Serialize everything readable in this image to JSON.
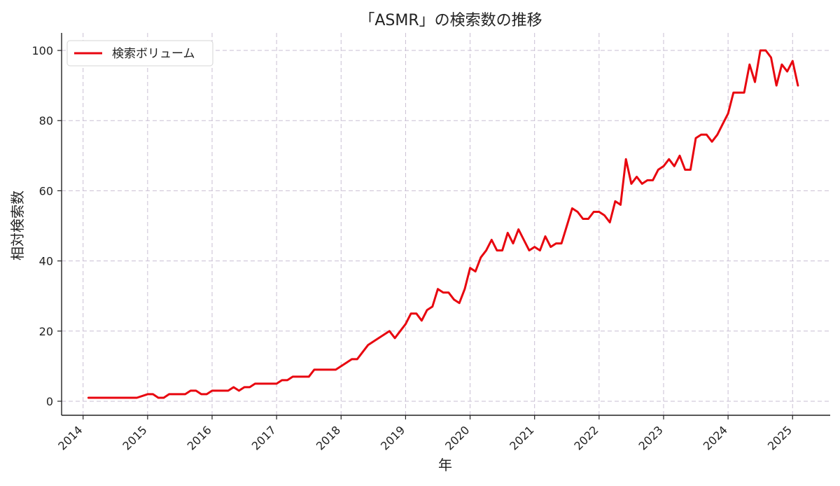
{
  "chart_data": {
    "type": "line",
    "title": "「ASMR」の検索数の推移",
    "xlabel": "年",
    "ylabel": "相対検索数",
    "x_ticks": [
      "2014",
      "2015",
      "2016",
      "2017",
      "2018",
      "2019",
      "2020",
      "2021",
      "2022",
      "2023",
      "2024",
      "2025"
    ],
    "y_ticks": [
      0,
      20,
      40,
      60,
      80,
      100
    ],
    "xlim": [
      "2013-09",
      "2025-08"
    ],
    "ylim": [
      -4,
      105
    ],
    "grid": true,
    "legend_position": "top-left",
    "series": [
      {
        "name": "検索ボリューム",
        "color": "#e8060f",
        "x": [
          "2014-02",
          "2014-11",
          "2015-01",
          "2015-02",
          "2015-03",
          "2015-04",
          "2015-05",
          "2015-06",
          "2015-07",
          "2015-08",
          "2015-09",
          "2015-10",
          "2015-11",
          "2015-12",
          "2016-01",
          "2016-02",
          "2016-03",
          "2016-04",
          "2016-05",
          "2016-06",
          "2016-07",
          "2016-08",
          "2016-09",
          "2016-10",
          "2016-11",
          "2016-12",
          "2017-01",
          "2017-02",
          "2017-03",
          "2017-04",
          "2017-05",
          "2017-06",
          "2017-07",
          "2017-08",
          "2017-09",
          "2017-10",
          "2017-11",
          "2017-12",
          "2018-01",
          "2018-02",
          "2018-03",
          "2018-04",
          "2018-05",
          "2018-06",
          "2018-07",
          "2018-08",
          "2018-09",
          "2018-10",
          "2018-11",
          "2018-12",
          "2019-01",
          "2019-02",
          "2019-03",
          "2019-04",
          "2019-05",
          "2019-06",
          "2019-07",
          "2019-08",
          "2019-09",
          "2019-10",
          "2019-11",
          "2019-12",
          "2020-01",
          "2020-02",
          "2020-03",
          "2020-04",
          "2020-05",
          "2020-06",
          "2020-07",
          "2020-08",
          "2020-09",
          "2020-10",
          "2020-11",
          "2020-12",
          "2021-01",
          "2021-02",
          "2021-03",
          "2021-04",
          "2021-05",
          "2021-06",
          "2021-07",
          "2021-08",
          "2021-09",
          "2021-10",
          "2021-11",
          "2021-12",
          "2022-01",
          "2022-02",
          "2022-03",
          "2022-04",
          "2022-05",
          "2022-06",
          "2022-07",
          "2022-08",
          "2022-09",
          "2022-10",
          "2022-11",
          "2022-12",
          "2023-01",
          "2023-02",
          "2023-03",
          "2023-04",
          "2023-05",
          "2023-06",
          "2023-07",
          "2023-08",
          "2023-09",
          "2023-10",
          "2023-11",
          "2023-12",
          "2024-01",
          "2024-02",
          "2024-03",
          "2024-04",
          "2024-05",
          "2024-06",
          "2024-07",
          "2024-08",
          "2024-09",
          "2024-10",
          "2024-11",
          "2024-12",
          "2025-01",
          "2025-02"
        ],
        "values": [
          1,
          1,
          2,
          2,
          1,
          1,
          2,
          2,
          2,
          2,
          3,
          3,
          2,
          2,
          3,
          3,
          3,
          3,
          4,
          3,
          4,
          4,
          5,
          5,
          5,
          5,
          5,
          6,
          6,
          7,
          7,
          7,
          7,
          9,
          9,
          9,
          9,
          9,
          10,
          11,
          12,
          12,
          14,
          16,
          17,
          18,
          19,
          20,
          18,
          20,
          22,
          25,
          25,
          23,
          26,
          27,
          32,
          31,
          31,
          29,
          28,
          32,
          38,
          37,
          41,
          43,
          46,
          43,
          43,
          48,
          45,
          49,
          46,
          43,
          44,
          43,
          47,
          44,
          45,
          45,
          50,
          55,
          54,
          52,
          52,
          54,
          54,
          53,
          51,
          57,
          56,
          69,
          62,
          64,
          62,
          63,
          63,
          66,
          67,
          69,
          67,
          70,
          66,
          66,
          75,
          76,
          76,
          74,
          76,
          79,
          82,
          88,
          88,
          88,
          96,
          91,
          100,
          100,
          98,
          90,
          96,
          94,
          97,
          90
        ]
      }
    ]
  }
}
